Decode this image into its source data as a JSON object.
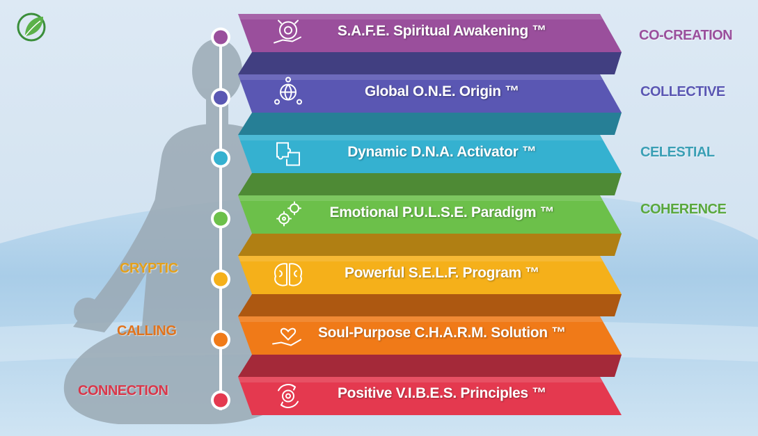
{
  "bands": [
    {
      "title": "S.A.F.E. Spiritual Awakening ™",
      "color": "#9a4f9c",
      "icon": "brain-gear-hand-icon"
    },
    {
      "title": "Global O.N.E. Origin ™",
      "color": "#5a57b3",
      "icon": "globe-people-icon"
    },
    {
      "title": "Dynamic D.N.A. Activator ™",
      "color": "#35b1d0",
      "icon": "puzzle-icon"
    },
    {
      "title": "Emotional P.U.L.S.E. Paradigm ™",
      "color": "#6cc04a",
      "icon": "gears-icon"
    },
    {
      "title": "Powerful S.E.L.F. Program ™",
      "color": "#f5b01a",
      "icon": "brain-icon"
    },
    {
      "title": "Soul-Purpose C.H.A.R.M. Solution ™",
      "color": "#f07a18",
      "icon": "heart-hand-icon"
    },
    {
      "title": "Positive V.I.B.E.S. Principles ™",
      "color": "#e4394f",
      "icon": "cycle-gear-icon"
    }
  ],
  "right_labels": [
    {
      "text": "CO-CREATION",
      "color": "#9a4f9c"
    },
    {
      "text": "COLLECTIVE",
      "color": "#5a57b3"
    },
    {
      "text": "CELESTIAL",
      "color": "#3a9fb5"
    },
    {
      "text": "COHERENCE",
      "color": "#5aa83e"
    }
  ],
  "left_labels": [
    {
      "text": "CRYPTIC",
      "color": "#e3a01c"
    },
    {
      "text": "CALLING",
      "color": "#e0731d"
    },
    {
      "text": "CONNECTION",
      "color": "#d8374a"
    }
  ],
  "logo": {
    "icon": "leaf-logo-icon"
  }
}
